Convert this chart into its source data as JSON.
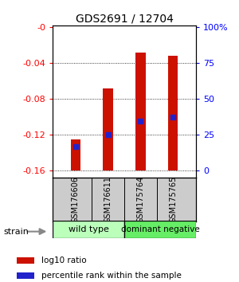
{
  "title": "GDS2691 / 12704",
  "samples": [
    "GSM176606",
    "GSM176611",
    "GSM175764",
    "GSM175765"
  ],
  "bar_bottom": -0.16,
  "bar_tops": [
    -0.125,
    -0.068,
    -0.028,
    -0.032
  ],
  "percentile_values": [
    -0.133,
    -0.12,
    -0.105,
    -0.1
  ],
  "ylim": [
    -0.168,
    0.002
  ],
  "yticks_left": [
    0.0,
    -0.04,
    -0.08,
    -0.12,
    -0.16
  ],
  "ytick_labels_left": [
    "-0",
    "-0.04",
    "-0.08",
    "-0.12",
    "-0.16"
  ],
  "yticks_right_pos": [
    0.0,
    -0.04,
    -0.08,
    -0.12,
    -0.16
  ],
  "ytick_labels_right": [
    "100%",
    "75",
    "50",
    "25",
    "0"
  ],
  "bar_color": "#cc1100",
  "blue_marker_color": "#2222cc",
  "strain_label": "strain",
  "wt_label": "wild type",
  "dn_label": "dominant negative",
  "wt_color": "#bbffbb",
  "dn_color": "#66ee66",
  "legend_red_label": "log10 ratio",
  "legend_blue_label": "percentile rank within the sample",
  "label_area_color": "#cccccc",
  "bg_color": "#ffffff"
}
